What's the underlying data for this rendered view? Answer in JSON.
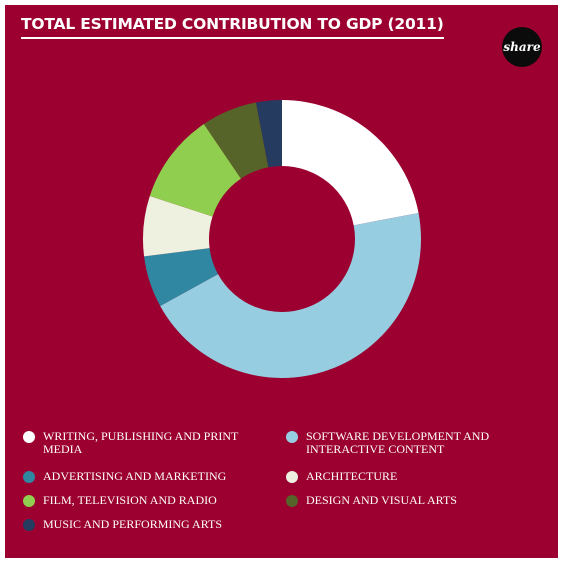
{
  "header": {
    "title": "TOTAL ESTIMATED CONTRIBUTION TO GDP (2011)",
    "share_label": "share"
  },
  "colors": {
    "background": "#9b0030",
    "writing": "#ffffff",
    "software": "#97cde0",
    "advertising": "#2f87a2",
    "architecture": "#eef0e0",
    "film": "#8fce4e",
    "design": "#566429",
    "music": "#253c60"
  },
  "chart_data": {
    "type": "pie",
    "donut": true,
    "title": "TOTAL ESTIMATED CONTRIBUTION TO GDP (2011)",
    "legend_position": "bottom",
    "slices": [
      {
        "label": "WRITING, PUBLISHING AND PRINT MEDIA",
        "value": 22,
        "color": "#ffffff"
      },
      {
        "label": "SOFTWARE DEVELOPMENT AND INTERACTIVE CONTENT",
        "value": 45,
        "color": "#97cde0"
      },
      {
        "label": "ADVERTISING AND MARKETING",
        "value": 6,
        "color": "#2f87a2"
      },
      {
        "label": "ARCHITECTURE",
        "value": 7,
        "color": "#eef0e0"
      },
      {
        "label": "FILM, TELEVISION AND RADIO",
        "value": 10.5,
        "color": "#8fce4e"
      },
      {
        "label": "DESIGN AND VISUAL ARTS",
        "value": 6.5,
        "color": "#566429"
      },
      {
        "label": "MUSIC AND PERFORMING ARTS",
        "value": 3,
        "color": "#253c60"
      }
    ]
  }
}
